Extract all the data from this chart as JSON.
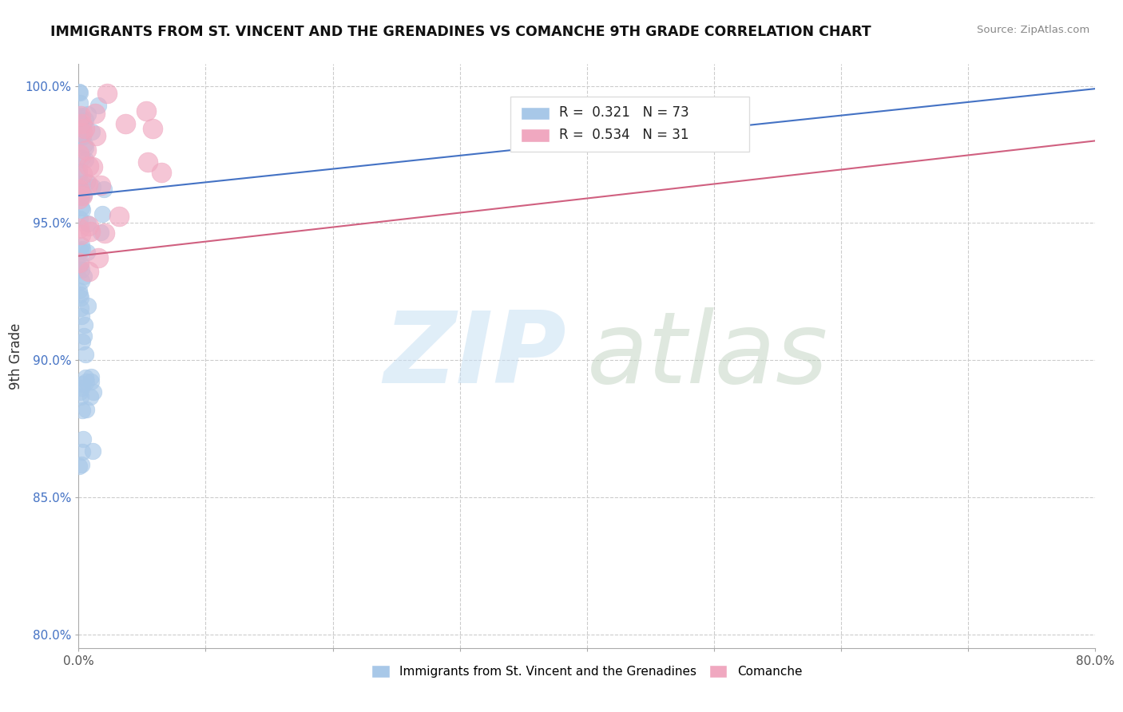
{
  "title": "IMMIGRANTS FROM ST. VINCENT AND THE GRENADINES VS COMANCHE 9TH GRADE CORRELATION CHART",
  "source": "Source: ZipAtlas.com",
  "ylabel": "9th Grade",
  "xlim": [
    0.0,
    0.8
  ],
  "ylim": [
    0.795,
    1.008
  ],
  "x_ticks": [
    0.0,
    0.1,
    0.2,
    0.3,
    0.4,
    0.5,
    0.6,
    0.7,
    0.8
  ],
  "x_tick_labels": [
    "0.0%",
    "",
    "",
    "",
    "",
    "",
    "",
    "",
    "80.0%"
  ],
  "y_ticks": [
    0.8,
    0.85,
    0.9,
    0.95,
    1.0
  ],
  "y_tick_labels": [
    "80.0%",
    "85.0%",
    "90.0%",
    "95.0%",
    "100.0%"
  ],
  "blue_R": 0.321,
  "blue_N": 73,
  "pink_R": 0.534,
  "pink_N": 31,
  "blue_color": "#a8c8e8",
  "pink_color": "#f0a8c0",
  "blue_line_color": "#4472c4",
  "pink_line_color": "#d06080",
  "background_color": "#ffffff",
  "grid_color": "#cccccc",
  "watermark_zip_color": "#c8e0f4",
  "watermark_atlas_color": "#b8ccb8"
}
